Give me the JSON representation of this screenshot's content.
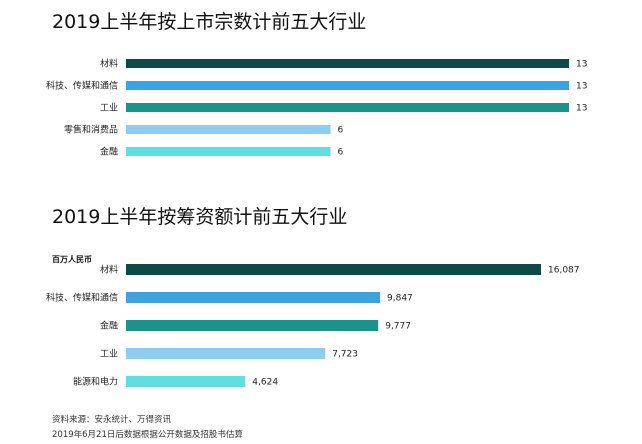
{
  "colors": {
    "dark_teal": "#0d4a45",
    "blue": "#3aa3e0",
    "teal": "#1b938b",
    "light_blue": "#8dcdee",
    "cyan": "#5fe0de"
  },
  "chart_data": [
    {
      "type": "bar",
      "orientation": "horizontal",
      "title": "2019上半年按上市宗数计前五大行业",
      "categories": [
        "材料",
        "科技、传媒和通信",
        "工业",
        "零售和消费品",
        "金融"
      ],
      "values": [
        13,
        13,
        13,
        6,
        6
      ],
      "value_labels": [
        "13",
        "13",
        "13",
        "6",
        "6"
      ],
      "bar_colors": [
        "#0d4a45",
        "#3aa3e0",
        "#1b938b",
        "#8dcdee",
        "#5fe0de"
      ],
      "xlim": [
        0,
        13
      ],
      "grid": false,
      "legend": "none"
    },
    {
      "type": "bar",
      "orientation": "horizontal",
      "title": "2019上半年按筹资额计前五大行业",
      "unit": "百万人民币",
      "categories": [
        "材料",
        "科技、传媒和通信",
        "金融",
        "工业",
        "能源和电力"
      ],
      "values": [
        16087,
        9847,
        9777,
        7723,
        4624
      ],
      "value_labels": [
        "16,087",
        "9,847",
        "9,777",
        "7,723",
        "4,624"
      ],
      "bar_colors": [
        "#0d4a45",
        "#3aa3e0",
        "#1b938b",
        "#8dcdee",
        "#5fe0de"
      ],
      "xlim": [
        0,
        16087
      ],
      "grid": false,
      "legend": "none"
    }
  ],
  "footnotes": {
    "source": "资料来源：安永统计、万得资讯",
    "note": "2019年6月21日后数据根据公开数据及招股书估算"
  }
}
